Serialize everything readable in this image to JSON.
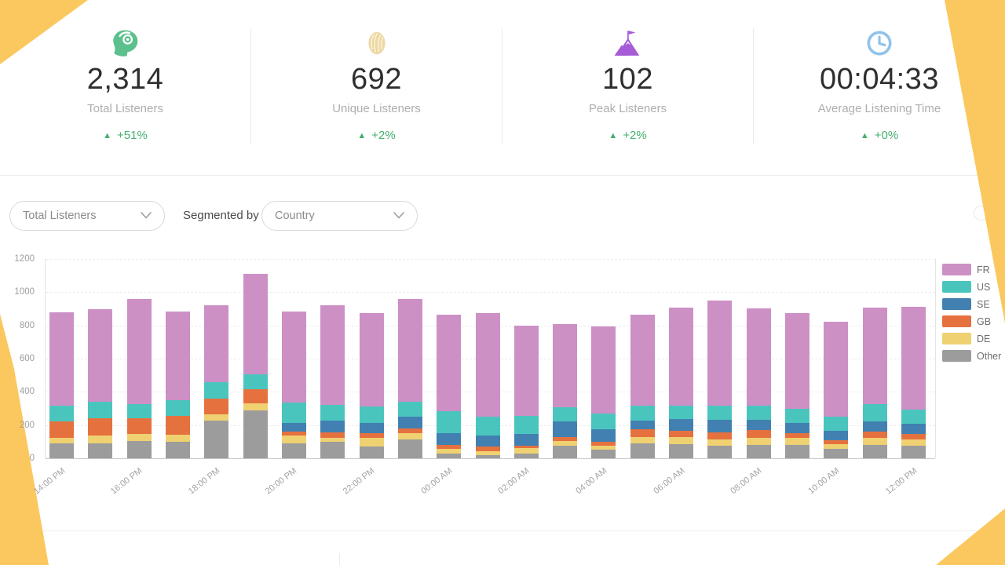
{
  "page": {
    "accent_color": "#FBC85F",
    "positive_color": "#43af6f"
  },
  "stats": [
    {
      "icon": "headphones-head-icon",
      "icon_color": "#5BC08C",
      "value": "2,314",
      "label": "Total Listeners",
      "change": "+51%"
    },
    {
      "icon": "fingerprint-icon",
      "icon_color": "#EDD9A4",
      "value": "692",
      "label": "Unique Listeners",
      "change": "+2%"
    },
    {
      "icon": "mountain-flag-icon",
      "icon_color": "#A55CD6",
      "value": "102",
      "label": "Peak Listeners",
      "change": "+2%"
    },
    {
      "icon": "clock-icon",
      "icon_color": "#90C3EA",
      "value": "00:04:33",
      "label": "Average Listening Time",
      "change": "+0%"
    }
  ],
  "controls": {
    "metric_dropdown": "Total Listeners",
    "segmented_by_label": "Segmented by",
    "segment_dropdown": "Country"
  },
  "chart_data": {
    "type": "bar",
    "stacked": true,
    "n_bars": 23,
    "ylim": [
      0,
      1200
    ],
    "y_step": 200,
    "grid": "horizontal-dashed",
    "legend_position": "right",
    "tick_labels": [
      "14:00 PM",
      "16:00 PM",
      "18:00 PM",
      "20:00 PM",
      "22:00 PM",
      "00:00 AM",
      "02:00 AM",
      "04:00 AM",
      "06:00 AM",
      "08:00 AM",
      "10:00 AM",
      "12:00 PM"
    ],
    "tick_positions": [
      0,
      2,
      4,
      6,
      8,
      10,
      12,
      14,
      16,
      18,
      20,
      22
    ],
    "series": [
      {
        "name": "Other",
        "color": "#9C9C9C",
        "values": [
          90,
          90,
          105,
          100,
          225,
          290,
          90,
          100,
          70,
          115,
          30,
          20,
          30,
          75,
          50,
          90,
          85,
          75,
          80,
          80,
          55,
          80,
          75
        ]
      },
      {
        "name": "DE",
        "color": "#EFD172",
        "values": [
          35,
          45,
          40,
          40,
          40,
          40,
          45,
          25,
          55,
          35,
          25,
          25,
          30,
          30,
          25,
          40,
          45,
          40,
          45,
          45,
          30,
          45,
          40
        ]
      },
      {
        "name": "GB",
        "color": "#E5713F",
        "values": [
          95,
          105,
          95,
          115,
          95,
          85,
          25,
          30,
          25,
          30,
          25,
          25,
          15,
          25,
          25,
          45,
          35,
          40,
          45,
          25,
          25,
          35,
          30
        ]
      },
      {
        "name": "SE",
        "color": "#4180B1",
        "values": [
          0,
          0,
          0,
          0,
          0,
          0,
          55,
          70,
          65,
          70,
          70,
          65,
          70,
          90,
          75,
          50,
          70,
          75,
          60,
          65,
          55,
          60,
          65
        ]
      },
      {
        "name": "US",
        "color": "#4AC5BE",
        "values": [
          95,
          100,
          85,
          95,
          100,
          90,
          120,
          95,
          95,
          90,
          135,
          115,
          110,
          85,
          95,
          90,
          80,
          85,
          85,
          85,
          85,
          105,
          85
        ]
      },
      {
        "name": "FR",
        "color": "#CC90C5",
        "values": [
          565,
          560,
          635,
          535,
          460,
          605,
          550,
          600,
          565,
          620,
          580,
          625,
          545,
          505,
          525,
          550,
          590,
          635,
          590,
          575,
          570,
          580,
          615
        ]
      }
    ],
    "legend_order": [
      "FR",
      "US",
      "SE",
      "GB",
      "DE",
      "Other"
    ]
  }
}
